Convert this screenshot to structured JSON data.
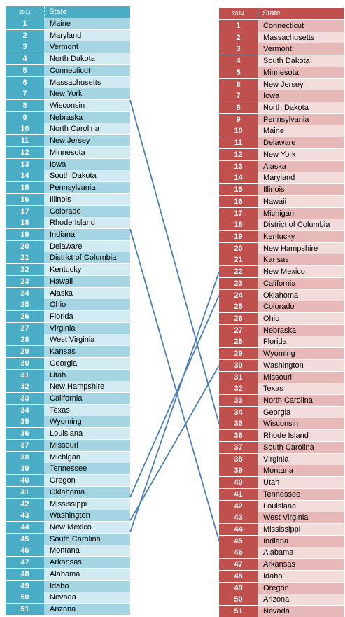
{
  "colors": {
    "left_dark": "#4BACC6",
    "left_mid": "#A5D5E2",
    "left_light": "#D2EAF1",
    "right_dark": "#C0504D",
    "right_mid": "#E6B9B8",
    "right_light": "#F2DCDB",
    "line": "#4A7EBB"
  },
  "left_table": {
    "year_header": "2011",
    "state_header": "State",
    "rows": [
      {
        "rank": "1",
        "state": "Maine"
      },
      {
        "rank": "2",
        "state": "Maryland"
      },
      {
        "rank": "3",
        "state": "Vermont"
      },
      {
        "rank": "4",
        "state": "North Dakota"
      },
      {
        "rank": "5",
        "state": "Connecticut"
      },
      {
        "rank": "6",
        "state": "Massachusetts"
      },
      {
        "rank": "7",
        "state": "New York"
      },
      {
        "rank": "8",
        "state": "Wisconsin"
      },
      {
        "rank": "9",
        "state": "Nebraska"
      },
      {
        "rank": "10",
        "state": "North Carolina"
      },
      {
        "rank": "11",
        "state": "New Jersey"
      },
      {
        "rank": "12",
        "state": "Minnesota"
      },
      {
        "rank": "13",
        "state": "Iowa"
      },
      {
        "rank": "14",
        "state": "South Dakota"
      },
      {
        "rank": "15",
        "state": "Pennsylvania"
      },
      {
        "rank": "16",
        "state": "Illinois"
      },
      {
        "rank": "17",
        "state": "Colorado"
      },
      {
        "rank": "18",
        "state": "Rhode Island"
      },
      {
        "rank": "19",
        "state": "Indiana"
      },
      {
        "rank": "20",
        "state": "Delaware"
      },
      {
        "rank": "21",
        "state": "District of Columbia"
      },
      {
        "rank": "22",
        "state": "Kentucky"
      },
      {
        "rank": "23",
        "state": "Hawaii"
      },
      {
        "rank": "24",
        "state": "Alaska"
      },
      {
        "rank": "25",
        "state": "Ohio"
      },
      {
        "rank": "26",
        "state": "Florida"
      },
      {
        "rank": "27",
        "state": "Virginia"
      },
      {
        "rank": "28",
        "state": "West Virginia"
      },
      {
        "rank": "29",
        "state": "Kansas"
      },
      {
        "rank": "30",
        "state": "Georgia"
      },
      {
        "rank": "31",
        "state": "Utah"
      },
      {
        "rank": "32",
        "state": "New Hampshire"
      },
      {
        "rank": "33",
        "state": "California"
      },
      {
        "rank": "34",
        "state": "Texas"
      },
      {
        "rank": "35",
        "state": "Wyoming"
      },
      {
        "rank": "36",
        "state": "Louisiana"
      },
      {
        "rank": "37",
        "state": "Missouri"
      },
      {
        "rank": "38",
        "state": "Michigan"
      },
      {
        "rank": "39",
        "state": "Tennessee"
      },
      {
        "rank": "40",
        "state": "Oregon"
      },
      {
        "rank": "41",
        "state": "Oklahoma"
      },
      {
        "rank": "42",
        "state": "Mississippi"
      },
      {
        "rank": "43",
        "state": "Washington"
      },
      {
        "rank": "44",
        "state": "New Mexico"
      },
      {
        "rank": "45",
        "state": "South Carolina"
      },
      {
        "rank": "46",
        "state": "Montana"
      },
      {
        "rank": "47",
        "state": "Arkansas"
      },
      {
        "rank": "48",
        "state": "Alabama"
      },
      {
        "rank": "49",
        "state": "Idaho"
      },
      {
        "rank": "50",
        "state": "Nevada"
      },
      {
        "rank": "51",
        "state": "Arizona"
      }
    ]
  },
  "right_table": {
    "year_header": "2014",
    "state_header": "State",
    "rows": [
      {
        "rank": "1",
        "state": "Connecticut"
      },
      {
        "rank": "2",
        "state": "Massachusetts"
      },
      {
        "rank": "3",
        "state": "Vermont"
      },
      {
        "rank": "4",
        "state": "South Dakota"
      },
      {
        "rank": "5",
        "state": "Minnesota"
      },
      {
        "rank": "6",
        "state": "New Jersey"
      },
      {
        "rank": "7",
        "state": "Iowa"
      },
      {
        "rank": "8",
        "state": "North Dakota"
      },
      {
        "rank": "9",
        "state": "Pennsylvania"
      },
      {
        "rank": "10",
        "state": "Maine"
      },
      {
        "rank": "11",
        "state": "Delaware"
      },
      {
        "rank": "12",
        "state": "New York"
      },
      {
        "rank": "13",
        "state": "Alaska"
      },
      {
        "rank": "14",
        "state": "Maryland"
      },
      {
        "rank": "15",
        "state": "Illinois"
      },
      {
        "rank": "16",
        "state": "Hawaii"
      },
      {
        "rank": "17",
        "state": "Michigan"
      },
      {
        "rank": "18",
        "state": "District of Columbia"
      },
      {
        "rank": "19",
        "state": "Kentucky"
      },
      {
        "rank": "20",
        "state": "New Hampshire"
      },
      {
        "rank": "21",
        "state": "Kansas"
      },
      {
        "rank": "22",
        "state": "New Mexico"
      },
      {
        "rank": "23",
        "state": "California"
      },
      {
        "rank": "24",
        "state": "Oklahoma"
      },
      {
        "rank": "25",
        "state": "Colorado"
      },
      {
        "rank": "26",
        "state": "Ohio"
      },
      {
        "rank": "27",
        "state": "Nebraska"
      },
      {
        "rank": "28",
        "state": "Florida"
      },
      {
        "rank": "29",
        "state": "Wyoming"
      },
      {
        "rank": "30",
        "state": "Washington"
      },
      {
        "rank": "31",
        "state": "Missouri"
      },
      {
        "rank": "32",
        "state": "Texas"
      },
      {
        "rank": "33",
        "state": "North Carolina"
      },
      {
        "rank": "34",
        "state": "Georgia"
      },
      {
        "rank": "35",
        "state": "Wisconsin"
      },
      {
        "rank": "36",
        "state": "Rhode Island"
      },
      {
        "rank": "37",
        "state": "South Carolina"
      },
      {
        "rank": "38",
        "state": "Virginia"
      },
      {
        "rank": "39",
        "state": "Montana"
      },
      {
        "rank": "40",
        "state": "Utah"
      },
      {
        "rank": "41",
        "state": "Tennessee"
      },
      {
        "rank": "42",
        "state": "Louisiana"
      },
      {
        "rank": "43",
        "state": "West Virginia"
      },
      {
        "rank": "44",
        "state": "Mississippi"
      },
      {
        "rank": "45",
        "state": "Indiana"
      },
      {
        "rank": "46",
        "state": "Alabama"
      },
      {
        "rank": "47",
        "state": "Arkansas"
      },
      {
        "rank": "48",
        "state": "Idaho"
      },
      {
        "rank": "49",
        "state": "Oregon"
      },
      {
        "rank": "50",
        "state": "Arizona"
      },
      {
        "rank": "51",
        "state": "Nevada"
      }
    ]
  },
  "connections": [
    {
      "from_2011": "8",
      "to_2014": "35"
    },
    {
      "from_2011": "19",
      "to_2014": "45"
    },
    {
      "from_2011": "41",
      "to_2014": "24"
    },
    {
      "from_2011": "43",
      "to_2014": "30"
    },
    {
      "from_2011": "44",
      "to_2014": "22"
    }
  ]
}
